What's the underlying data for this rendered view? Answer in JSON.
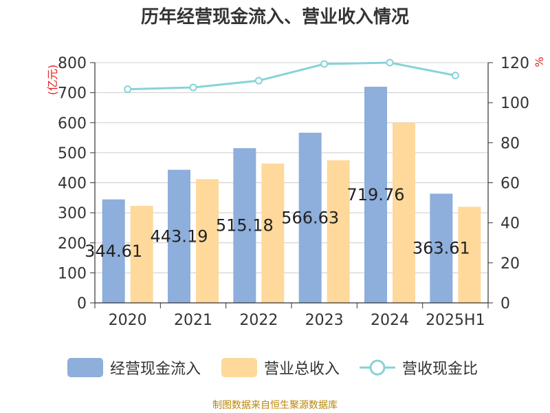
{
  "title": "历年经营现金流入、营业收入情况",
  "source": "制图数据来自恒生聚源数据库",
  "chart_data": {
    "type": "bar",
    "categories": [
      "2020",
      "2021",
      "2022",
      "2023",
      "2024",
      "2025H1"
    ],
    "series": [
      {
        "name": "经营现金流入",
        "type": "bar",
        "axis": "left",
        "color": "#8eaedb",
        "values": [
          344.61,
          443.19,
          515.18,
          566.63,
          719.76,
          363.61
        ],
        "data_labels": [
          "344.61",
          "443.19",
          "515.18",
          "566.63",
          "719.76",
          "363.61"
        ]
      },
      {
        "name": "营业总收入",
        "type": "bar",
        "axis": "left",
        "color": "#fed99b",
        "values": [
          323,
          412,
          464,
          475,
          600,
          320
        ]
      },
      {
        "name": "营收现金比",
        "type": "line",
        "axis": "right",
        "color": "#86d3d6",
        "values": [
          106.7,
          107.6,
          111.0,
          119.3,
          120.0,
          113.6
        ]
      }
    ],
    "y_left": {
      "label": "(亿元)",
      "ylim": [
        0,
        800
      ],
      "ticks": [
        0,
        100,
        200,
        300,
        400,
        500,
        600,
        700,
        800
      ]
    },
    "y_right": {
      "label": "%",
      "ylim": [
        0,
        120
      ],
      "ticks": [
        0,
        20,
        40,
        60,
        80,
        100,
        120
      ]
    },
    "grid": true,
    "legend_position": "bottom"
  }
}
